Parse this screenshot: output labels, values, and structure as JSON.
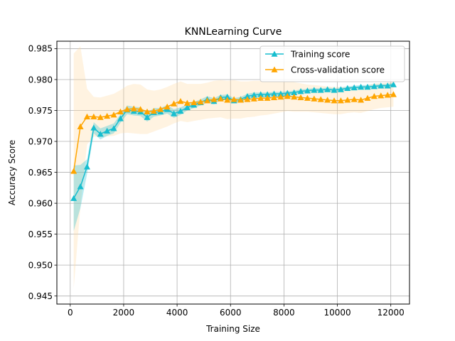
{
  "chart_data": {
    "type": "line",
    "title": "KNNLearning Curve",
    "xlabel": "Training Size",
    "ylabel": "Accuracy Score",
    "xlim": [
      -500,
      12700
    ],
    "ylim": [
      0.9437,
      0.9862
    ],
    "xticks": [
      0,
      2000,
      4000,
      6000,
      8000,
      10000,
      12000
    ],
    "xtick_labels": [
      "0",
      "2000",
      "4000",
      "6000",
      "8000",
      "10000",
      "12000"
    ],
    "yticks": [
      0.945,
      0.95,
      0.955,
      0.96,
      0.965,
      0.97,
      0.975,
      0.98,
      0.985
    ],
    "ytick_labels": [
      "0.945",
      "0.950",
      "0.955",
      "0.960",
      "0.965",
      "0.970",
      "0.975",
      "0.980",
      "0.985"
    ],
    "grid": true,
    "legend_position": "top-right",
    "x": [
      130,
      380,
      630,
      880,
      1130,
      1380,
      1630,
      1880,
      2130,
      2380,
      2630,
      2880,
      3130,
      3380,
      3630,
      3880,
      4130,
      4380,
      4630,
      4880,
      5130,
      5380,
      5630,
      5880,
      6130,
      6380,
      6630,
      6880,
      7130,
      7380,
      7630,
      7880,
      8130,
      8380,
      8630,
      8880,
      9130,
      9380,
      9630,
      9880,
      10130,
      10380,
      10630,
      10880,
      11130,
      11380,
      11630,
      11880,
      12100
    ],
    "series": [
      {
        "name": "Training score",
        "color": "#17becf",
        "band_color": "#17becf",
        "values": [
          0.9608,
          0.9627,
          0.9659,
          0.9722,
          0.9712,
          0.9717,
          0.9721,
          0.9737,
          0.9751,
          0.9749,
          0.9748,
          0.9739,
          0.9747,
          0.9748,
          0.9752,
          0.9745,
          0.9749,
          0.9755,
          0.9759,
          0.9763,
          0.9768,
          0.9765,
          0.9771,
          0.9772,
          0.9766,
          0.9768,
          0.9773,
          0.9775,
          0.9776,
          0.9776,
          0.9777,
          0.9777,
          0.9778,
          0.9779,
          0.9781,
          0.9782,
          0.9783,
          0.9783,
          0.9784,
          0.9783,
          0.9784,
          0.9786,
          0.9787,
          0.9788,
          0.9788,
          0.9789,
          0.979,
          0.979,
          0.9792
        ],
        "band_halfwidth": [
          0.0053,
          0.0035,
          0.0012,
          0.0009,
          0.0009,
          0.0008,
          0.0008,
          0.0007,
          0.0007,
          0.0007,
          0.0007,
          0.0007,
          0.0007,
          0.0006,
          0.0007,
          0.0007,
          0.0006,
          0.0005,
          0.0005,
          0.0005,
          0.0005,
          0.0005,
          0.0004,
          0.0004,
          0.0004,
          0.0004,
          0.0004,
          0.0004,
          0.0003,
          0.0003,
          0.0003,
          0.0003,
          0.0003,
          0.0003,
          0.0003,
          0.0003,
          0.0003,
          0.0003,
          0.0003,
          0.0003,
          0.0003,
          0.0003,
          0.0003,
          0.0003,
          0.0003,
          0.0003,
          0.0003,
          0.0003,
          0.0003
        ]
      },
      {
        "name": "Cross-validation score",
        "color": "#ffa500",
        "band_color": "#ffd89a",
        "values": [
          0.9652,
          0.9724,
          0.974,
          0.974,
          0.9739,
          0.9741,
          0.9743,
          0.9748,
          0.9752,
          0.9753,
          0.9752,
          0.9748,
          0.9749,
          0.9752,
          0.9756,
          0.9761,
          0.9765,
          0.9762,
          0.9763,
          0.9764,
          0.9766,
          0.9768,
          0.9769,
          0.9767,
          0.9768,
          0.9767,
          0.9768,
          0.9769,
          0.977,
          0.977,
          0.9771,
          0.9772,
          0.9773,
          0.9772,
          0.9771,
          0.977,
          0.9769,
          0.9768,
          0.9767,
          0.9766,
          0.9766,
          0.9767,
          0.9768,
          0.9767,
          0.977,
          0.9773,
          0.9774,
          0.9775,
          0.9776
        ],
        "band_halfwidth": [
          0.019,
          0.013,
          0.0045,
          0.0032,
          0.0032,
          0.0033,
          0.0034,
          0.0035,
          0.0038,
          0.004,
          0.004,
          0.0036,
          0.0033,
          0.0032,
          0.0032,
          0.0032,
          0.0032,
          0.0031,
          0.003,
          0.0029,
          0.0029,
          0.003,
          0.003,
          0.0031,
          0.0031,
          0.003,
          0.0029,
          0.0029,
          0.0028,
          0.0027,
          0.0026,
          0.0025,
          0.0024,
          0.0024,
          0.0023,
          0.0022,
          0.0022,
          0.0022,
          0.0022,
          0.0022,
          0.0022,
          0.0021,
          0.0021,
          0.0021,
          0.0021,
          0.0021,
          0.002,
          0.002,
          0.002
        ]
      }
    ]
  }
}
